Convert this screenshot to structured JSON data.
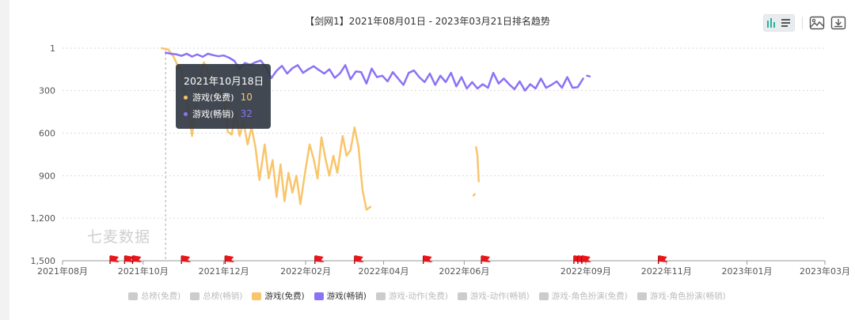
{
  "title": "【剑网1】2021年08月01日 - 2023年03月21日排名趋势",
  "watermark": "七麦数据",
  "toolbar": {
    "bar_icon": "bar-line-toggle-icon",
    "image_icon": "save-image-icon",
    "download_icon": "download-icon"
  },
  "colors": {
    "free": "#f9c56b",
    "paid": "#8c72f5",
    "flag": "#e8161b",
    "grid": "#d9d9d9",
    "disabled": "#cccccc"
  },
  "tooltip": {
    "date": "2021年10月18日",
    "rows": [
      {
        "label": "游戏(免费)",
        "value": "10",
        "color": "#f9c56b"
      },
      {
        "label": "游戏(畅销)",
        "value": "32",
        "color": "#8c72f5"
      }
    ]
  },
  "legend": [
    {
      "label": "总榜(免费)",
      "active": false,
      "color": "#cccccc"
    },
    {
      "label": "总榜(畅销)",
      "active": false,
      "color": "#cccccc"
    },
    {
      "label": "游戏(免费)",
      "active": true,
      "color": "#f9c56b"
    },
    {
      "label": "游戏(畅销)",
      "active": true,
      "color": "#8c72f5"
    },
    {
      "label": "游戏-动作(免费)",
      "active": false,
      "color": "#cccccc"
    },
    {
      "label": "游戏-动作(畅销)",
      "active": false,
      "color": "#cccccc"
    },
    {
      "label": "游戏-角色扮演(免费)",
      "active": false,
      "color": "#cccccc"
    },
    {
      "label": "游戏-角色扮演(畅销)",
      "active": false,
      "color": "#cccccc"
    }
  ],
  "chart_data": {
    "type": "line",
    "title": "【剑网1】2021年08月01日 - 2023年03月21日排名趋势",
    "y_inverted": true,
    "ylim": [
      1,
      1500
    ],
    "y_ticks": [
      "1",
      "300",
      "600",
      "900",
      "1,200",
      "1,500"
    ],
    "y_tick_values": [
      1,
      300,
      600,
      900,
      1200,
      1500
    ],
    "x_ticks": [
      "2021年08月",
      "2021年10月",
      "2021年12月",
      "2022年02月",
      "2022年04月",
      "2022年06月",
      "2022年09月",
      "2022年11月",
      "2023年01月",
      "2023年03月"
    ],
    "x_tick_dates": [
      "2021-08-01",
      "2021-10-01",
      "2021-12-01",
      "2022-02-01",
      "2022-04-01",
      "2022-06-01",
      "2022-09-01",
      "2022-11-01",
      "2023-01-01",
      "2023-03-01"
    ],
    "grid": true,
    "crosshair_date": "2021-10-18",
    "series": [
      {
        "name": "游戏(免费)",
        "color": "#f9c56b",
        "segments": [
          [
            [
              "2021-10-15",
              1
            ],
            [
              "2021-10-20",
              10
            ],
            [
              "2021-10-24",
              60
            ],
            [
              "2021-10-27",
              120
            ],
            [
              "2021-10-30",
              160
            ],
            [
              "2021-11-01",
              300
            ],
            [
              "2021-11-04",
              420
            ],
            [
              "2021-11-07",
              620
            ],
            [
              "2021-11-10",
              380
            ],
            [
              "2021-11-13",
              200
            ],
            [
              "2021-11-16",
              100
            ],
            [
              "2021-11-19",
              160
            ],
            [
              "2021-11-22",
              250
            ],
            [
              "2021-11-25",
              320
            ],
            [
              "2021-11-28",
              300
            ],
            [
              "2021-12-01",
              330
            ],
            [
              "2021-12-04",
              590
            ],
            [
              "2021-12-07",
              610
            ],
            [
              "2021-12-10",
              450
            ],
            [
              "2021-12-13",
              620
            ],
            [
              "2021-12-16",
              520
            ],
            [
              "2021-12-19",
              680
            ],
            [
              "2021-12-22",
              560
            ],
            [
              "2021-12-25",
              700
            ],
            [
              "2021-12-28",
              930
            ],
            [
              "2022-01-01",
              680
            ],
            [
              "2022-01-04",
              920
            ],
            [
              "2022-01-07",
              790
            ],
            [
              "2022-01-10",
              1050
            ],
            [
              "2022-01-13",
              820
            ],
            [
              "2022-01-16",
              1080
            ],
            [
              "2022-01-19",
              880
            ],
            [
              "2022-01-22",
              1020
            ],
            [
              "2022-01-25",
              900
            ],
            [
              "2022-01-28",
              1100
            ],
            [
              "2022-02-01",
              850
            ],
            [
              "2022-02-04",
              680
            ],
            [
              "2022-02-07",
              780
            ],
            [
              "2022-02-10",
              920
            ],
            [
              "2022-02-13",
              630
            ],
            [
              "2022-02-16",
              780
            ],
            [
              "2022-02-19",
              900
            ],
            [
              "2022-02-22",
              760
            ],
            [
              "2022-02-25",
              880
            ],
            [
              "2022-03-01",
              620
            ],
            [
              "2022-03-04",
              760
            ],
            [
              "2022-03-07",
              720
            ],
            [
              "2022-03-10",
              560
            ],
            [
              "2022-03-13",
              700
            ],
            [
              "2022-03-16",
              1000
            ],
            [
              "2022-03-19",
              1140
            ],
            [
              "2022-03-22",
              1120
            ]
          ],
          [
            [
              "2022-06-08",
              1040
            ],
            [
              "2022-06-09",
              1030
            ]
          ],
          [
            [
              "2022-06-10",
              700
            ],
            [
              "2022-06-11",
              760
            ],
            [
              "2022-06-12",
              940
            ]
          ]
        ]
      },
      {
        "name": "游戏(畅销)",
        "color": "#8c72f5",
        "segments": [
          [
            [
              "2021-10-18",
              32
            ],
            [
              "2021-10-22",
              40
            ],
            [
              "2021-10-26",
              44
            ],
            [
              "2021-10-30",
              55
            ],
            [
              "2021-11-03",
              40
            ],
            [
              "2021-11-07",
              60
            ],
            [
              "2021-11-11",
              45
            ],
            [
              "2021-11-15",
              62
            ],
            [
              "2021-11-19",
              40
            ],
            [
              "2021-11-23",
              50
            ],
            [
              "2021-11-27",
              58
            ],
            [
              "2021-12-01",
              52
            ],
            [
              "2021-12-05",
              68
            ],
            [
              "2021-12-09",
              90
            ],
            [
              "2021-12-13",
              148
            ],
            [
              "2021-12-17",
              105
            ],
            [
              "2021-12-21",
              118
            ],
            [
              "2021-12-25",
              100
            ],
            [
              "2021-12-29",
              88
            ],
            [
              "2022-01-02",
              135
            ],
            [
              "2022-01-06",
              212
            ],
            [
              "2022-01-10",
              160
            ],
            [
              "2022-01-14",
              125
            ],
            [
              "2022-01-18",
              180
            ],
            [
              "2022-01-22",
              142
            ],
            [
              "2022-01-26",
              120
            ],
            [
              "2022-01-30",
              175
            ],
            [
              "2022-02-03",
              150
            ],
            [
              "2022-02-07",
              128
            ],
            [
              "2022-02-11",
              155
            ],
            [
              "2022-02-15",
              180
            ],
            [
              "2022-02-19",
              150
            ],
            [
              "2022-02-23",
              210
            ],
            [
              "2022-02-27",
              178
            ],
            [
              "2022-03-03",
              120
            ],
            [
              "2022-03-07",
              220
            ],
            [
              "2022-03-11",
              165
            ],
            [
              "2022-03-15",
              170
            ],
            [
              "2022-03-19",
              250
            ],
            [
              "2022-03-23",
              145
            ],
            [
              "2022-03-27",
              205
            ],
            [
              "2022-03-31",
              195
            ],
            [
              "2022-04-04",
              235
            ],
            [
              "2022-04-08",
              170
            ],
            [
              "2022-04-12",
              215
            ],
            [
              "2022-04-16",
              260
            ],
            [
              "2022-04-20",
              175
            ],
            [
              "2022-04-24",
              158
            ],
            [
              "2022-04-28",
              205
            ],
            [
              "2022-05-02",
              240
            ],
            [
              "2022-05-06",
              180
            ],
            [
              "2022-05-10",
              260
            ],
            [
              "2022-05-14",
              195
            ],
            [
              "2022-05-18",
              240
            ],
            [
              "2022-05-22",
              175
            ],
            [
              "2022-05-26",
              270
            ],
            [
              "2022-05-30",
              205
            ],
            [
              "2022-06-03",
              285
            ],
            [
              "2022-06-07",
              240
            ],
            [
              "2022-06-11",
              285
            ],
            [
              "2022-06-15",
              255
            ],
            [
              "2022-06-19",
              280
            ],
            [
              "2022-06-23",
              175
            ],
            [
              "2022-06-27",
              250
            ],
            [
              "2022-07-01",
              215
            ],
            [
              "2022-07-05",
              255
            ],
            [
              "2022-07-09",
              290
            ],
            [
              "2022-07-13",
              235
            ],
            [
              "2022-07-17",
              300
            ],
            [
              "2022-07-21",
              255
            ],
            [
              "2022-07-25",
              285
            ],
            [
              "2022-07-29",
              215
            ],
            [
              "2022-08-02",
              280
            ],
            [
              "2022-08-06",
              260
            ],
            [
              "2022-08-10",
              235
            ],
            [
              "2022-08-14",
              280
            ],
            [
              "2022-08-18",
              205
            ],
            [
              "2022-08-22",
              280
            ],
            [
              "2022-08-26",
              275
            ],
            [
              "2022-08-30",
              215
            ]
          ],
          [
            [
              "2022-09-02",
              195
            ],
            [
              "2022-09-04",
              200
            ]
          ]
        ]
      }
    ],
    "event_flags": [
      "2021-09-09",
      "2021-09-20",
      "2021-09-26",
      "2021-11-02",
      "2021-12-05",
      "2022-02-11",
      "2022-03-13",
      "2022-05-04",
      "2022-06-17",
      "2022-08-26",
      "2022-08-29",
      "2022-09-01",
      "2022-10-29"
    ]
  }
}
